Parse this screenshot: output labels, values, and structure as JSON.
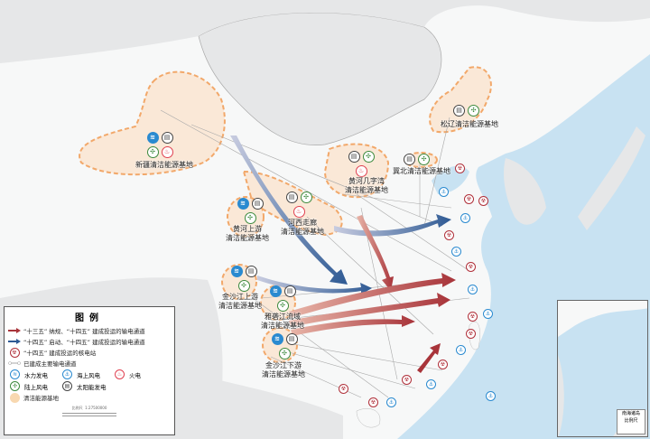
{
  "legend": {
    "title": "图例",
    "items": [
      {
        "label": "“十三五” 纳规、“十四五” 建成投运的输电通道",
        "icon": "red-arrow",
        "color": "#a8343a"
      },
      {
        "label": "“十四五” 启动、“十四五” 建成投运的输电通道",
        "icon": "blue-arrow",
        "color": "#2e5a94"
      },
      {
        "label": "“十四五” 建成投运的核电站",
        "icon": "nuclear-icon",
        "color": "#b0303a"
      },
      {
        "label": "已建成主要输电通道",
        "icon": "gray-line",
        "color": "#aaaaaa"
      }
    ],
    "types": [
      {
        "label": "水力发电",
        "icon": "hydro-icon",
        "glyph": "≋"
      },
      {
        "label": "海上风电",
        "icon": "offshore-wind-icon",
        "glyph": "⚓"
      },
      {
        "label": "火电",
        "icon": "fire-icon",
        "glyph": "♨"
      },
      {
        "label": "陆上风电",
        "icon": "wind-icon",
        "glyph": "✣"
      },
      {
        "label": "太阳能发电",
        "icon": "solar-icon",
        "glyph": "▤"
      }
    ],
    "base_label": "清洁能源基地",
    "scale_label": "比例尺",
    "scale_value": "1:27500000"
  },
  "bases": [
    {
      "name": "新疆清洁能源基地",
      "lines": [
        "新疆清洁能源基地"
      ],
      "icons": [
        "hydro",
        "solar",
        "wind",
        "fire"
      ]
    },
    {
      "name": "松辽清洁能源基地",
      "lines": [
        "松辽清洁能源基地"
      ],
      "icons": [
        "solar",
        "wind"
      ]
    },
    {
      "name": "黄河几字湾清洁能源基地",
      "lines": [
        "黄河几字湾",
        "清洁能源基地"
      ],
      "icons": [
        "solar",
        "wind",
        "fire"
      ]
    },
    {
      "name": "冀北清洁能源基地",
      "lines": [
        "冀北清洁能源基地"
      ],
      "icons": [
        "solar",
        "wind"
      ]
    },
    {
      "name": "河西走廊清洁能源基地",
      "lines": [
        "河西走廊",
        "清洁能源基地"
      ],
      "icons": [
        "solar",
        "wind",
        "fire"
      ]
    },
    {
      "name": "黄河上游清洁能源基地",
      "lines": [
        "黄河上游",
        "清洁能源基地"
      ],
      "icons": [
        "hydro",
        "solar",
        "wind"
      ]
    },
    {
      "name": "金沙江上游清洁能源基地",
      "lines": [
        "金沙江上游",
        "清洁能源基地"
      ],
      "icons": [
        "hydro",
        "solar",
        "wind"
      ]
    },
    {
      "name": "雅砻江流域清洁能源基地",
      "lines": [
        "雅砻江流域",
        "清洁能源基地"
      ],
      "icons": [
        "hydro",
        "solar",
        "wind"
      ]
    },
    {
      "name": "金沙江下游清洁能源基地",
      "lines": [
        "金沙江下游",
        "清洁能源基地"
      ],
      "icons": [
        "hydro",
        "solar",
        "wind"
      ]
    }
  ],
  "inset": {
    "title": "南海诸岛",
    "subtitle": "比例尺"
  },
  "colors": {
    "sea": "#c8e2f2",
    "land": "#f7f8f8",
    "foreign_land": "#e6e7e8",
    "base_fill": "#fbe3cc",
    "base_border": "#f2a86a",
    "red_arrow": "#a8343a",
    "blue_arrow": "#2e5a94"
  }
}
